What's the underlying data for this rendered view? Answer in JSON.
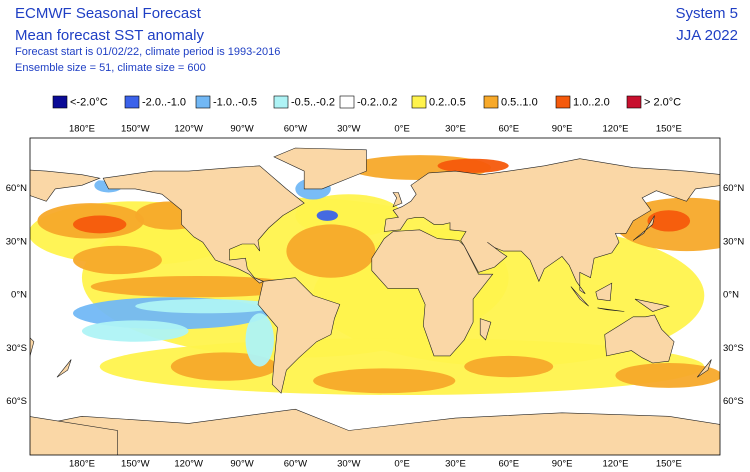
{
  "header": {
    "title": "ECMWF Seasonal Forecast",
    "subtitle": "Mean forecast SST anomaly",
    "info_lines": [
      "Forecast start is 01/02/22, climate period is 1993-2016",
      "Ensemble size = 51, climate size = 600"
    ],
    "system": "System 5",
    "season": "JJA 2022"
  },
  "legend": [
    {
      "label": "<-2.0°C",
      "color": "#0b0b96"
    },
    {
      "label": "-2.0..-1.0",
      "color": "#3b62ea"
    },
    {
      "label": "-1.0..-0.5",
      "color": "#72b8f5"
    },
    {
      "label": "-0.5..-0.2",
      "color": "#aef3f5"
    },
    {
      "label": "-0.2..0.2",
      "color": "#ffffff"
    },
    {
      "label": "0.2..0.5",
      "color": "#fff34d"
    },
    {
      "label": "0.5..1.0",
      "color": "#f7a92a"
    },
    {
      "label": "1.0..2.0",
      "color": "#f55a0c"
    },
    {
      "label": "> 2.0°C",
      "color": "#c8102e"
    }
  ],
  "lon_labels": [
    "180°E",
    "150°W",
    "120°W",
    "90°W",
    "60°W",
    "30°W",
    "0°E",
    "30°E",
    "60°E",
    "90°E",
    "120°E",
    "150°E"
  ],
  "lat_labels": [
    "60°N",
    "30°N",
    "0°N",
    "30°S",
    "60°S"
  ]
}
